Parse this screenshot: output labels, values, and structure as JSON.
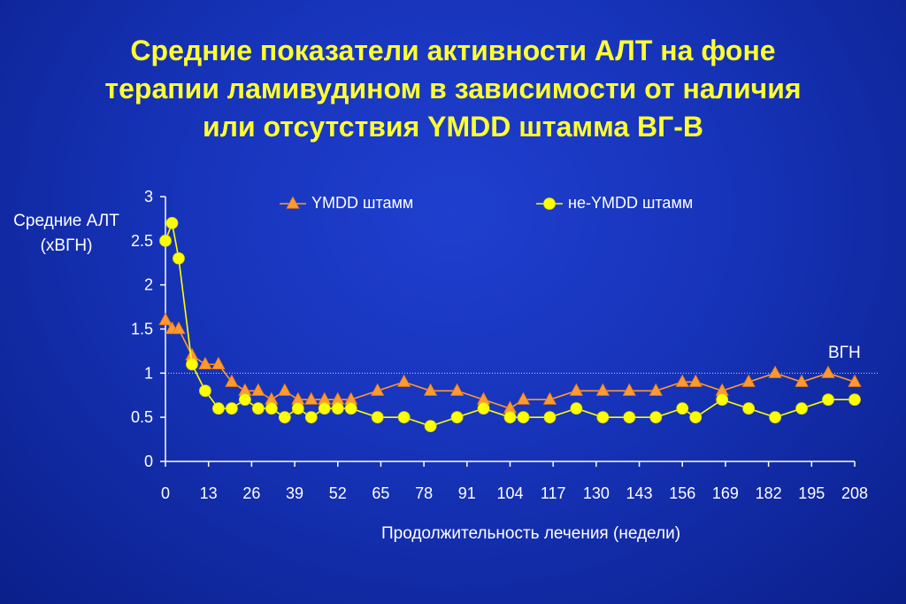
{
  "title": {
    "line1": "Средние показатели активности АЛТ на фоне",
    "line2": "терапии ламивудином в зависимости от наличия",
    "line3": "или отсутствия YMDD штамма ВГ-В"
  },
  "chart_data": {
    "type": "line",
    "ylabel": "Средние АЛТ (хВГН)",
    "ylabel_line1": "Средние АЛТ",
    "ylabel_line2": "(хВГН)",
    "xlabel": "Продолжительность лечения (недели)",
    "xlim": [
      0,
      208
    ],
    "ylim": [
      0,
      3
    ],
    "x_ticks": [
      "0",
      "13",
      "26",
      "39",
      "52",
      "65",
      "78",
      "91",
      "104",
      "117",
      "130",
      "143",
      "156",
      "169",
      "182",
      "195",
      "208"
    ],
    "y_ticks": [
      "0",
      "0.5",
      "1",
      "1.5",
      "2",
      "2.5",
      "3"
    ],
    "reference_line": {
      "label": "ВГН",
      "y": 1
    },
    "legend_position": "top",
    "series": [
      {
        "name": "YMDD штамм",
        "marker": "triangle",
        "color": "#ff9933",
        "x": [
          0,
          2,
          4,
          8,
          12,
          16,
          20,
          24,
          28,
          32,
          36,
          40,
          44,
          48,
          52,
          56,
          64,
          72,
          80,
          88,
          96,
          104,
          108,
          116,
          124,
          132,
          140,
          148,
          156,
          160,
          168,
          176,
          184,
          192,
          200,
          208
        ],
        "y": [
          1.6,
          1.5,
          1.5,
          1.2,
          1.1,
          1.1,
          0.9,
          0.8,
          0.8,
          0.7,
          0.8,
          0.7,
          0.7,
          0.7,
          0.7,
          0.7,
          0.8,
          0.9,
          0.8,
          0.8,
          0.7,
          0.6,
          0.7,
          0.7,
          0.8,
          0.8,
          0.8,
          0.8,
          0.9,
          0.9,
          0.8,
          0.9,
          1.0,
          0.9,
          1.0,
          0.9
        ]
      },
      {
        "name": "не-YMDD штамм",
        "marker": "circle",
        "color": "#ffff00",
        "x": [
          0,
          2,
          4,
          8,
          12,
          16,
          20,
          24,
          28,
          32,
          36,
          40,
          44,
          48,
          52,
          56,
          64,
          72,
          80,
          88,
          96,
          104,
          108,
          116,
          124,
          132,
          140,
          148,
          156,
          160,
          168,
          176,
          184,
          192,
          200,
          208
        ],
        "y": [
          2.5,
          2.7,
          2.3,
          1.1,
          0.8,
          0.6,
          0.6,
          0.7,
          0.6,
          0.6,
          0.5,
          0.6,
          0.5,
          0.6,
          0.6,
          0.6,
          0.5,
          0.5,
          0.4,
          0.5,
          0.6,
          0.5,
          0.5,
          0.5,
          0.6,
          0.5,
          0.5,
          0.5,
          0.6,
          0.5,
          0.7,
          0.6,
          0.5,
          0.6,
          0.7,
          0.7
        ]
      }
    ]
  }
}
